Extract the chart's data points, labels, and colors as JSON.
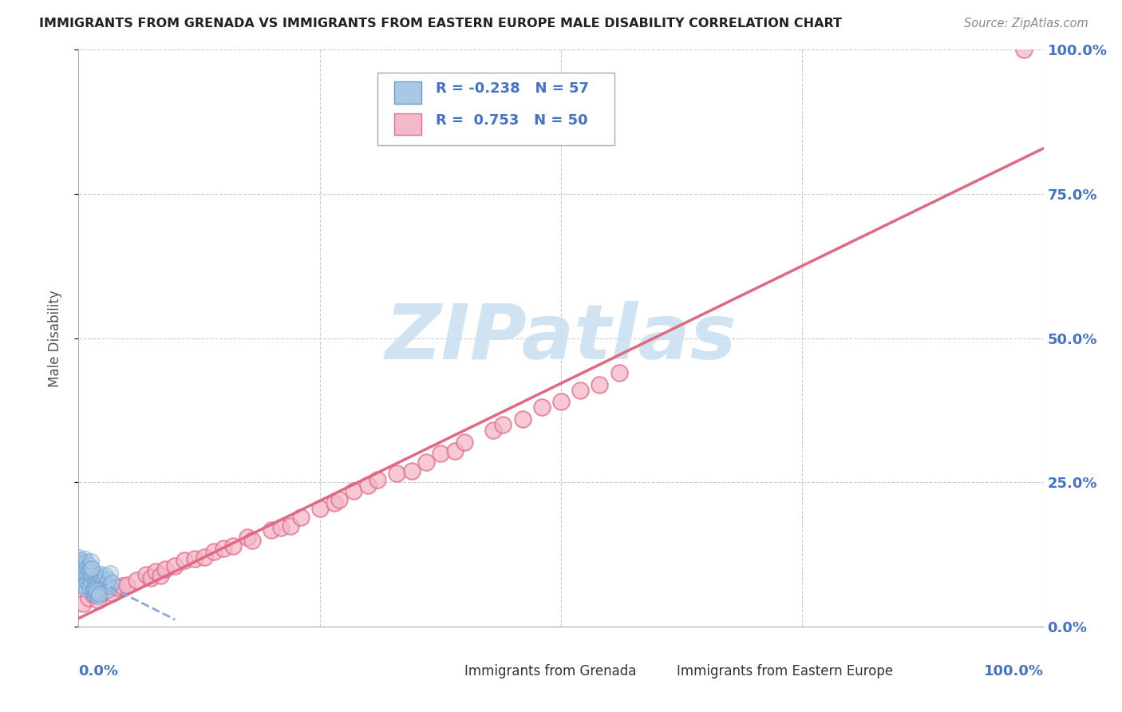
{
  "title": "IMMIGRANTS FROM GRENADA VS IMMIGRANTS FROM EASTERN EUROPE MALE DISABILITY CORRELATION CHART",
  "source": "Source: ZipAtlas.com",
  "ylabel": "Male Disability",
  "xlim": [
    0,
    1
  ],
  "ylim": [
    0,
    1
  ],
  "background_color": "#ffffff",
  "grid_color": "#cccccc",
  "color_grenada_fill": "#a8c8e8",
  "color_grenada_edge": "#6699cc",
  "color_eastern_fill": "#f4b8c8",
  "color_eastern_edge": "#e07090",
  "trendline_eastern_color": "#e06880",
  "trendline_grenada_color": "#88aad0",
  "watermark_color": "#c8dff0",
  "right_tick_color": "#4472c4",
  "grenada_x": [
    0.0,
    0.001,
    0.002,
    0.003,
    0.004,
    0.005,
    0.006,
    0.007,
    0.008,
    0.009,
    0.01,
    0.011,
    0.012,
    0.013,
    0.014,
    0.015,
    0.016,
    0.017,
    0.018,
    0.019,
    0.02,
    0.021,
    0.022,
    0.023,
    0.024,
    0.025,
    0.026,
    0.027,
    0.028,
    0.029,
    0.03,
    0.031,
    0.032,
    0.033,
    0.034,
    0.0,
    0.001,
    0.002,
    0.003,
    0.004,
    0.005,
    0.006,
    0.007,
    0.008,
    0.009,
    0.01,
    0.011,
    0.012,
    0.013,
    0.014,
    0.015,
    0.016,
    0.017,
    0.018,
    0.019,
    0.02,
    0.021
  ],
  "grenada_y": [
    0.08,
    0.075,
    0.09,
    0.07,
    0.085,
    0.095,
    0.072,
    0.088,
    0.065,
    0.078,
    0.092,
    0.068,
    0.082,
    0.074,
    0.087,
    0.063,
    0.094,
    0.076,
    0.084,
    0.071,
    0.079,
    0.086,
    0.067,
    0.091,
    0.073,
    0.077,
    0.083,
    0.069,
    0.089,
    0.075,
    0.064,
    0.081,
    0.07,
    0.093,
    0.076,
    0.12,
    0.11,
    0.105,
    0.115,
    0.108,
    0.1,
    0.118,
    0.096,
    0.112,
    0.103,
    0.097,
    0.107,
    0.099,
    0.113,
    0.101,
    0.06,
    0.065,
    0.055,
    0.058,
    0.062,
    0.053,
    0.057
  ],
  "eastern_x": [
    0.005,
    0.01,
    0.015,
    0.02,
    0.025,
    0.03,
    0.035,
    0.04,
    0.045,
    0.05,
    0.06,
    0.07,
    0.075,
    0.08,
    0.085,
    0.09,
    0.1,
    0.11,
    0.12,
    0.13,
    0.14,
    0.15,
    0.16,
    0.175,
    0.18,
    0.2,
    0.21,
    0.22,
    0.23,
    0.25,
    0.265,
    0.27,
    0.285,
    0.3,
    0.31,
    0.33,
    0.345,
    0.36,
    0.375,
    0.39,
    0.4,
    0.43,
    0.44,
    0.46,
    0.48,
    0.5,
    0.52,
    0.54,
    0.56,
    0.98
  ],
  "eastern_y": [
    0.04,
    0.05,
    0.055,
    0.045,
    0.06,
    0.065,
    0.058,
    0.068,
    0.07,
    0.072,
    0.08,
    0.09,
    0.085,
    0.095,
    0.088,
    0.1,
    0.105,
    0.115,
    0.118,
    0.12,
    0.13,
    0.135,
    0.14,
    0.155,
    0.15,
    0.168,
    0.172,
    0.175,
    0.19,
    0.205,
    0.215,
    0.22,
    0.235,
    0.245,
    0.255,
    0.265,
    0.27,
    0.285,
    0.3,
    0.305,
    0.32,
    0.34,
    0.35,
    0.36,
    0.38,
    0.39,
    0.41,
    0.42,
    0.44,
    1.0
  ]
}
